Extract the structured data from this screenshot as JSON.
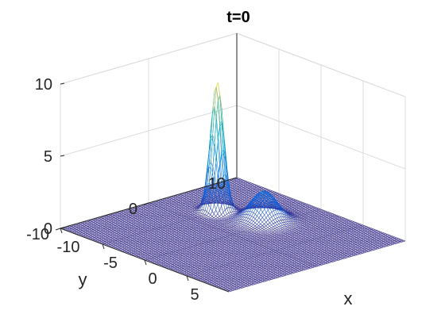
{
  "chart_data": {
    "type": "surface",
    "title": "t=0",
    "xlabel": "x",
    "ylabel": "y",
    "zlabel": "",
    "xlim": [
      -10,
      10
    ],
    "ylim": [
      -10,
      10
    ],
    "zlim": [
      0,
      10
    ],
    "x_ticks": [
      -10,
      -5,
      0,
      5
    ],
    "x_tick_labels": [
      "-10",
      "-5",
      "0",
      "5"
    ],
    "y_ticks": [
      -10,
      0,
      10
    ],
    "y_tick_labels": [
      "-10",
      "0",
      "10"
    ],
    "z_ticks": [
      0,
      5,
      10
    ],
    "z_tick_labels": [
      "0",
      "5",
      "10"
    ],
    "grid": true,
    "colormap": "parula",
    "peaks": [
      {
        "x": -5,
        "y": 3,
        "height": 9.0
      },
      {
        "x": -1,
        "y": 4.5,
        "height": 2.0
      }
    ]
  }
}
